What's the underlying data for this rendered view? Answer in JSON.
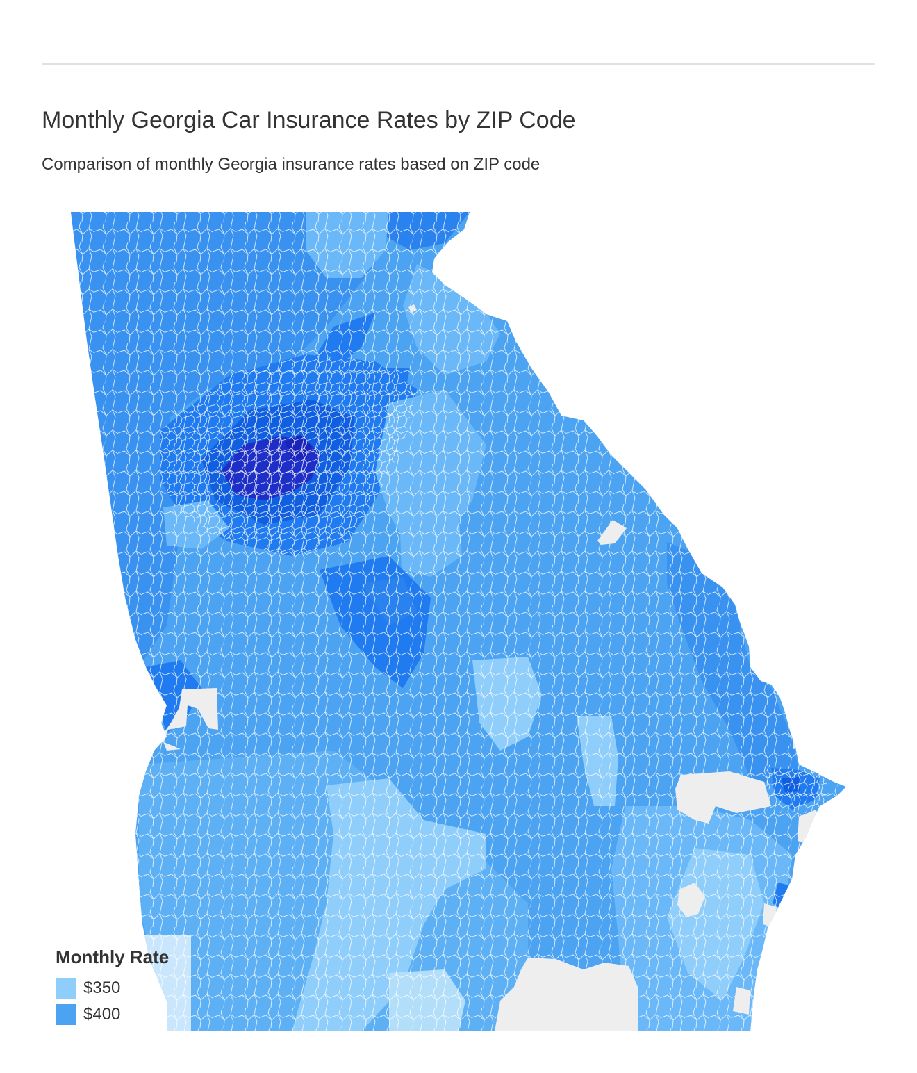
{
  "header": {
    "title": "Monthly Georgia Car Insurance Rates by ZIP Code",
    "subtitle": "Comparison of monthly Georgia insurance rates based on ZIP code"
  },
  "legend": {
    "title": "Monthly Rate",
    "items": [
      {
        "label": "$350",
        "color": "#8fcdfa"
      },
      {
        "label": "$400",
        "color": "#4ba3f2"
      },
      {
        "label": "",
        "color": "#1f6fe8"
      }
    ]
  },
  "map": {
    "region": "Georgia",
    "unit": "ZIP code",
    "colors": {
      "lightest": "#c9e6fc",
      "light": "#8fcdfa",
      "mid_light": "#6ab8f7",
      "mid": "#4ba3f2",
      "mid_dark": "#3a92f0",
      "dark": "#1f7bef",
      "darker": "#0f5fe0",
      "darkest": "#1e2fc8",
      "no_data": "#eeeeee"
    }
  }
}
